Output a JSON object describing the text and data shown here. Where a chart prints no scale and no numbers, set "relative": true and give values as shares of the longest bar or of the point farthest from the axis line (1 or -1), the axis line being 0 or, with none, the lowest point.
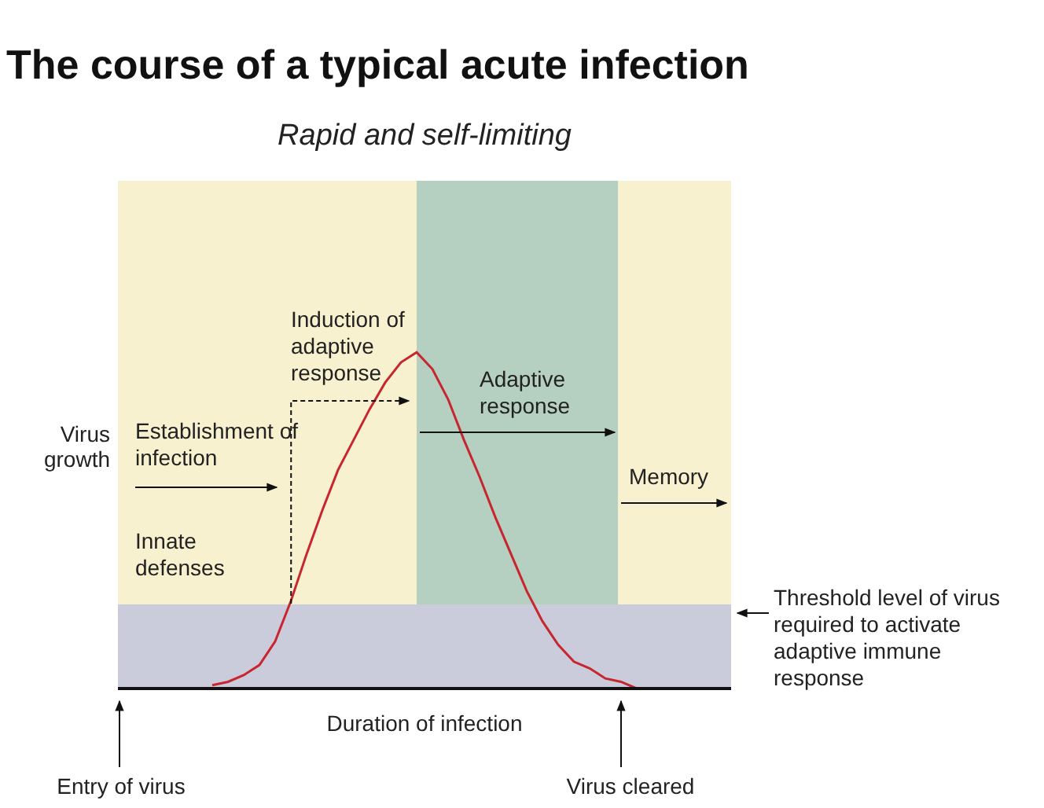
{
  "chart_data": {
    "type": "line",
    "title": "The course of a typical acute infection",
    "subtitle": "Rapid and self-limiting",
    "xlabel": "Duration of infection",
    "ylabel": "Virus growth",
    "relative": true,
    "categories": [
      null,
      null,
      null,
      null,
      null,
      null,
      null,
      null,
      null,
      null,
      null,
      null,
      null,
      null,
      null,
      null,
      null,
      null,
      null,
      null,
      null,
      null,
      null,
      null,
      null,
      null,
      null,
      null,
      null,
      null,
      null,
      null,
      null,
      null,
      null,
      null,
      null,
      null,
      null,
      null
    ],
    "color": "#c8262e",
    "values": [
      null,
      null,
      null,
      null,
      null,
      null,
      0.01,
      0.02,
      0.04,
      0.07,
      0.14,
      0.26,
      0.4,
      0.53,
      0.65,
      0.74,
      0.83,
      0.91,
      0.97,
      1.0,
      0.95,
      0.86,
      0.74,
      0.63,
      0.51,
      0.4,
      0.29,
      0.2,
      0.13,
      0.08,
      0.06,
      0.03,
      0.02,
      0.0,
      null,
      null,
      null,
      null,
      null,
      null
    ],
    "bands": [
      {
        "axis": "y",
        "from": 0,
        "to": 0.25,
        "color": "#cbccdb",
        "label": "Threshold level of virus required to activate adaptive immune response"
      }
    ],
    "annotations": [
      "Establishment of infection",
      "Innate defenses",
      "Induction of adaptive response",
      "Adaptive response",
      "Memory",
      "Entry of virus",
      "Virus cleared"
    ]
  }
}
